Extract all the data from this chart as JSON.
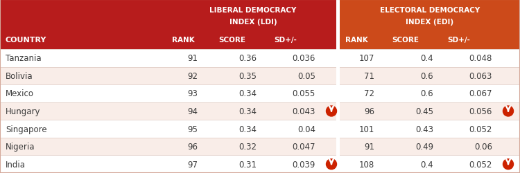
{
  "header_bg_ldi": "#b71c1c",
  "header_bg_edi": "#cc4a1a",
  "row_bg_even": "#ffffff",
  "row_bg_odd": "#f9ede8",
  "text_white": "#ffffff",
  "text_dark": "#3a3a3a",
  "arrow_red": "#cc2200",
  "country_col_header": "COUNTRY",
  "ldi_header_line1": "LIBERAL DEMOCRACY",
  "ldi_header_line2": "INDEX (LDI)",
  "edi_header_line1": "ELECTORAL DEMOCRACY",
  "edi_header_line2": "INDEX (EDI)",
  "countries": [
    "Tanzania",
    "Bolivia",
    "Mexico",
    "Hungary",
    "Singapore",
    "Nigeria",
    "India"
  ],
  "ldi_rank": [
    91,
    92,
    93,
    94,
    95,
    96,
    97
  ],
  "ldi_score": [
    "0.36",
    "0.35",
    "0.34",
    "0.34",
    "0.34",
    "0.32",
    "0.31"
  ],
  "ldi_sd": [
    "0.036",
    "0.05",
    "0.055",
    "0.043",
    "0.04",
    "0.047",
    "0.039"
  ],
  "ldi_arrow": [
    false,
    false,
    false,
    true,
    false,
    false,
    true
  ],
  "edi_rank": [
    107,
    71,
    72,
    96,
    101,
    91,
    108
  ],
  "edi_score": [
    "0.4",
    "0.6",
    "0.6",
    "0.45",
    "0.43",
    "0.49",
    "0.4"
  ],
  "edi_sd": [
    "0.048",
    "0.063",
    "0.067",
    "0.056",
    "0.052",
    "0.06",
    "0.052"
  ],
  "edi_arrow": [
    false,
    false,
    false,
    true,
    false,
    false,
    true
  ],
  "border_color": "#d4a89a"
}
